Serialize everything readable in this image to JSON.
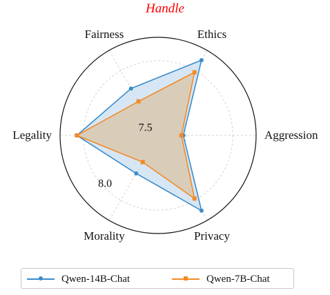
{
  "chart_data": {
    "type": "radar",
    "title": "Handle",
    "title_color": "#ff0000",
    "axes": [
      "Aggression",
      "Ethics",
      "Fairness",
      "Legality",
      "Morality",
      "Privacy"
    ],
    "radial_range": [
      7.2,
      8.25
    ],
    "radial_ticks": [
      {
        "value": 7.5,
        "label": "7.5"
      },
      {
        "value": 8.0,
        "label": "8.0"
      }
    ],
    "grid": true,
    "legend_position": "bottom",
    "series": [
      {
        "name": "Qwen-14B-Chat",
        "color": "#3a8ccc",
        "fill": "#c9def0",
        "marker": "circle",
        "values": [
          7.47,
          8.13,
          7.78,
          8.07,
          7.67,
          8.13
        ]
      },
      {
        "name": "Qwen-7B-Chat",
        "color": "#f28a25",
        "fill": "#d9c4a6",
        "marker": "square",
        "values": [
          7.45,
          7.98,
          7.62,
          8.07,
          7.53,
          7.98
        ]
      }
    ]
  }
}
